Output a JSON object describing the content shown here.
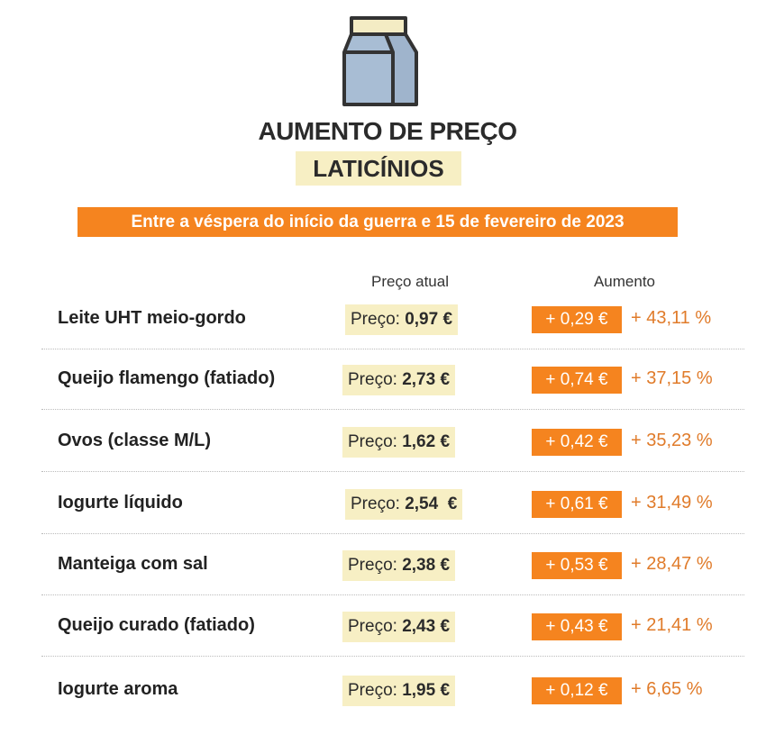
{
  "header": {
    "title": "AUMENTO DE PREÇO",
    "category": "LATICÍNIOS",
    "subtitle": "Entre a véspera do início da guerra e 15 de fevereiro de 2023"
  },
  "table": {
    "columns": [
      "Preço atual",
      "Aumento"
    ],
    "rows": [
      {
        "name": "Leite UHT meio-gordo",
        "price_label": "Preço:",
        "price": "0,97 €",
        "increase": "+ 0,29 €",
        "percent": "+ 43,11 %"
      },
      {
        "name": "Queijo flamengo (fatiado)",
        "price_label": "Preço:",
        "price": "2,73 €",
        "increase": "+ 0,74 €",
        "percent": "+ 37,15 %"
      },
      {
        "name": "Ovos (classe M/L)",
        "price_label": "Preço:",
        "price": "1,62 €",
        "increase": "+ 0,42 €",
        "percent": "+ 35,23 %"
      },
      {
        "name": "Iogurte líquido",
        "price_label": "Preço:",
        "price": "2,54  €",
        "increase": "+ 0,61 €",
        "percent": "+ 31,49 %"
      },
      {
        "name": "Manteiga com sal",
        "price_label": "Preço:",
        "price": "2,38 €",
        "increase": "+ 0,53 €",
        "percent": "+ 28,47 %"
      },
      {
        "name": "Queijo curado (fatiado)",
        "price_label": "Preço:",
        "price": "2,43 €",
        "increase": "+ 0,43 €",
        "percent": "+ 21,41 %"
      },
      {
        "name": "Iogurte aroma",
        "price_label": "Preço:",
        "price": "1,95 €",
        "increase": "+ 0,12 €",
        "percent": "+ 6,65 %"
      }
    ]
  }
}
